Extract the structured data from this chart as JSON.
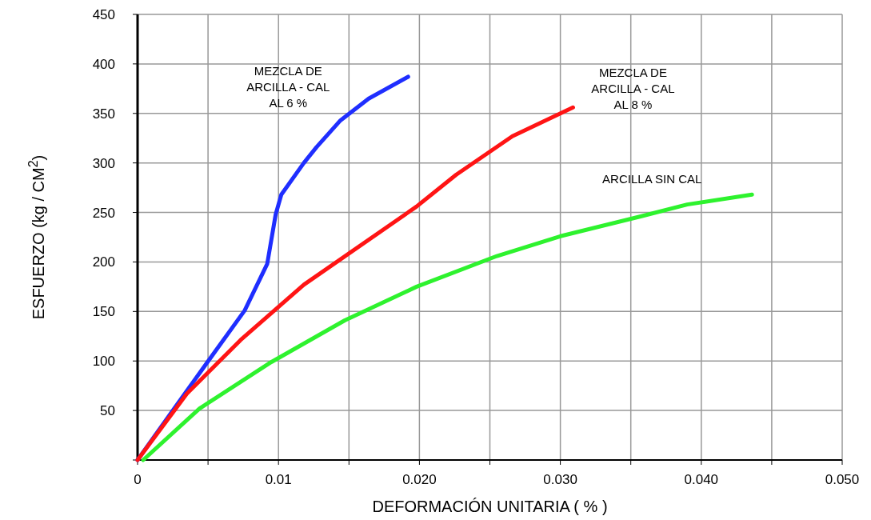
{
  "chart_data": {
    "type": "line",
    "xlabel": "DEFORMACIÓN  UNITARIA  ( % )",
    "ylabel": "ESFUERZO  (kg / CM$^{2}$)",
    "xlim": [
      0,
      0.05
    ],
    "xticks": [
      0,
      {
        "value": 0.005,
        "label": null
      },
      {
        "value": 0.01,
        "label": "0.01"
      },
      {
        "value": 0.015,
        "label": null
      },
      {
        "value": 0.02,
        "label": "0.020"
      },
      {
        "value": 0.025,
        "label": null
      },
      {
        "value": 0.03,
        "label": "0.030"
      },
      {
        "value": 0.035,
        "label": null
      },
      {
        "value": 0.04,
        "label": "0.040"
      },
      {
        "value": 0.045,
        "label": null
      },
      {
        "value": 0.05,
        "label": "0.050"
      }
    ],
    "ylim": [
      0,
      450
    ],
    "yticks": [
      {
        "value": 0,
        "label": null
      },
      50,
      100,
      150,
      200,
      250,
      300,
      350,
      400,
      450
    ],
    "grid": true,
    "marker": "none",
    "line_style": "solid",
    "series": [
      {
        "name": "MEZCLA DE ARCILLA - CAL AL 6 %",
        "color": "#1f2eff",
        "x": [
          0,
          0.0035,
          0.0076,
          0.0092,
          0.0098,
          0.0102,
          0.0118,
          0.0127,
          0.0144,
          0.0164,
          0.0192
        ],
        "values": [
          0,
          70,
          151,
          198,
          248,
          268,
          300,
          316,
          343,
          365,
          387
        ]
      },
      {
        "name": "MEZCLA DE ARCILLA - CAL AL 8 %",
        "color": "#ff1414",
        "x": [
          0,
          0.0035,
          0.0073,
          0.0118,
          0.0198,
          0.0226,
          0.0266,
          0.0309
        ],
        "values": [
          0,
          67,
          121,
          177,
          256,
          288,
          327,
          356
        ]
      },
      {
        "name": "ARCILLA  SIN  CAL",
        "color": "#2ef22e",
        "x": [
          0.0004,
          0.0044,
          0.0095,
          0.0147,
          0.0198,
          0.0255,
          0.03,
          0.0357,
          0.039,
          0.0436
        ],
        "values": [
          0,
          52,
          99,
          141,
          175,
          206,
          226,
          246,
          258,
          268
        ]
      }
    ]
  }
}
